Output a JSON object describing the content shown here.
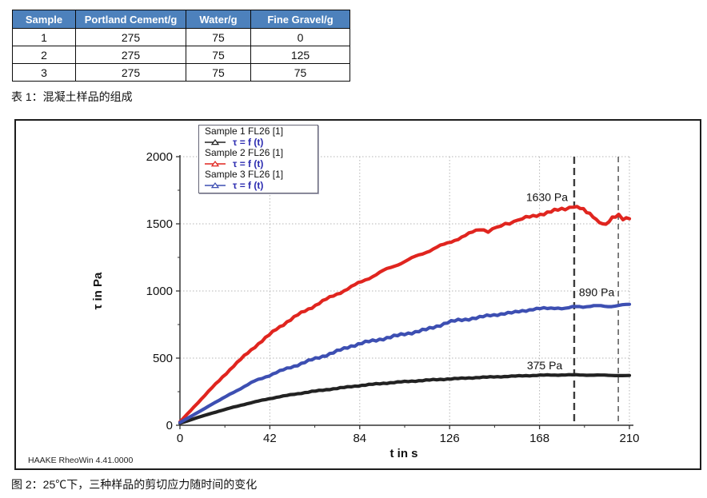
{
  "table": {
    "headers": [
      "Sample",
      "Portland Cement/g",
      "Water/g",
      "Fine Gravel/g"
    ],
    "rows": [
      [
        "1",
        "275",
        "75",
        "0"
      ],
      [
        "2",
        "275",
        "75",
        "125"
      ],
      [
        "3",
        "275",
        "75",
        "75"
      ]
    ],
    "caption": "表 1：混凝土样品的组成",
    "header_bg": "#4d81bc"
  },
  "figure": {
    "caption": "图 2：25℃下，三种样品的剪切应力随时间的变化",
    "watermark": "HAAKE RheoWin 4.41.0000"
  },
  "chart_data": {
    "type": "line",
    "xlabel": "t in s",
    "ylabel": "τ in Pa",
    "xlim": [
      0,
      210
    ],
    "ylim": [
      0,
      2000
    ],
    "xticks": [
      0,
      42,
      84,
      126,
      168,
      210
    ],
    "yticks": [
      0,
      500,
      1000,
      1500,
      2000
    ],
    "grid": "dotted",
    "gridcolor": "#b5b5b5",
    "legend": {
      "position": "top-left",
      "items": [
        {
          "title": "Sample 1 FL26 [1]",
          "label": "τ = f (t)",
          "color": "#222222"
        },
        {
          "title": "Sample 2 FL26 [1]",
          "label": "τ = f (t)",
          "color": "#e0251f"
        },
        {
          "title": "Sample 3 FL26 [1]",
          "label": "τ = f (t)",
          "color": "#3d4fb2"
        }
      ]
    },
    "annotations": [
      {
        "text": "1630 Pa",
        "x": 171.5,
        "y": 1700
      },
      {
        "text": "890 Pa",
        "x": 194.7,
        "y": 990
      },
      {
        "text": "375 Pa",
        "x": 170.4,
        "y": 446
      }
    ],
    "vlines": [
      {
        "x": 184.2,
        "width": 2.4,
        "dash": "9 5"
      },
      {
        "x": 204.8,
        "width": 1.3,
        "dash": "7 5"
      }
    ],
    "series": [
      {
        "name": "Sample 1 FL26 [1]",
        "color": "#222222",
        "t": [
          0,
          5,
          10,
          15,
          20,
          25,
          30,
          35,
          40,
          45,
          50,
          55,
          60,
          65,
          70,
          75,
          80,
          85,
          90,
          95,
          100,
          105,
          110,
          115,
          120,
          125,
          130,
          135,
          140,
          145,
          150,
          155,
          160,
          165,
          170,
          175,
          180,
          185,
          190,
          195,
          200,
          205,
          210
        ],
        "tau": [
          15,
          40,
          66,
          90,
          113,
          135,
          155,
          174,
          192,
          208,
          222,
          235,
          247,
          258,
          268,
          278,
          288,
          297,
          305,
          312,
          319,
          325,
          330,
          335,
          340,
          344,
          348,
          352,
          356,
          359,
          362,
          365,
          368,
          371,
          373,
          374,
          375,
          375,
          374,
          373,
          372,
          371,
          369
        ]
      },
      {
        "name": "Sample 2 FL26 [1]",
        "color": "#e0251f",
        "t": [
          0,
          5,
          10,
          15,
          20,
          25,
          30,
          35,
          40,
          45,
          50,
          55,
          60,
          65,
          70,
          75,
          80,
          85,
          90,
          95,
          100,
          105,
          110,
          115,
          120,
          125,
          130,
          135,
          140,
          144,
          148,
          152,
          156,
          160,
          165,
          170,
          175,
          180,
          184,
          187,
          190,
          193,
          196,
          199,
          202,
          205,
          207,
          210
        ],
        "tau": [
          25,
          110,
          195,
          280,
          360,
          440,
          515,
          585,
          650,
          715,
          770,
          820,
          865,
          910,
          950,
          990,
          1030,
          1070,
          1110,
          1150,
          1185,
          1220,
          1255,
          1290,
          1325,
          1355,
          1390,
          1425,
          1460,
          1448,
          1470,
          1495,
          1520,
          1540,
          1555,
          1578,
          1598,
          1612,
          1632,
          1618,
          1585,
          1555,
          1515,
          1495,
          1540,
          1562,
          1538,
          1550
        ]
      },
      {
        "name": "Sample 3 FL26 [1]",
        "color": "#3d4fb2",
        "t": [
          0,
          5,
          10,
          15,
          20,
          25,
          30,
          35,
          40,
          45,
          50,
          55,
          60,
          65,
          70,
          75,
          80,
          85,
          90,
          95,
          100,
          105,
          110,
          115,
          120,
          125,
          130,
          135,
          140,
          145,
          150,
          155,
          160,
          165,
          170,
          175,
          180,
          185,
          190,
          195,
          200,
          205,
          210
        ],
        "tau": [
          20,
          65,
          110,
          158,
          200,
          245,
          288,
          330,
          360,
          392,
          422,
          450,
          478,
          505,
          532,
          560,
          590,
          612,
          628,
          645,
          662,
          680,
          695,
          712,
          738,
          765,
          782,
          792,
          802,
          820,
          828,
          836,
          854,
          862,
          870,
          876,
          866,
          886,
          884,
          888,
          886,
          892,
          898
        ]
      }
    ]
  }
}
